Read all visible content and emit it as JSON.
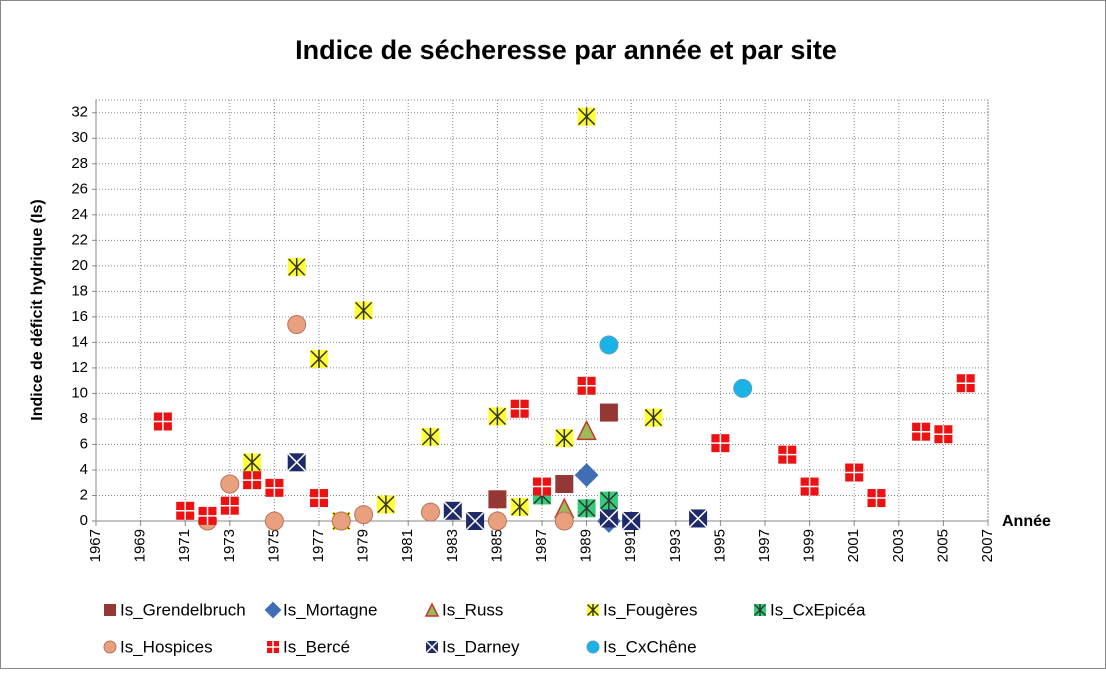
{
  "chart_data": {
    "type": "scatter",
    "title": "Indice de sécheresse par année et par site",
    "x_label": "Année",
    "y_label": "Indice de déficit hydrique (Is)",
    "xlim": [
      1967,
      2007
    ],
    "xticks": [
      1967,
      1969,
      1971,
      1973,
      1975,
      1977,
      1979,
      1981,
      1983,
      1985,
      1987,
      1989,
      1991,
      1993,
      1995,
      1997,
      1999,
      2001,
      2003,
      2005,
      2007
    ],
    "ylim": [
      0,
      33
    ],
    "yticks": [
      0,
      2,
      4,
      6,
      8,
      10,
      12,
      14,
      16,
      18,
      20,
      22,
      24,
      26,
      28,
      30,
      32
    ],
    "grid": true,
    "legend": "bottom",
    "series": [
      {
        "name": "Is_Grendelbruch",
        "color": "#953735",
        "marker": "square",
        "x": [
          1985,
          1988,
          1990
        ],
        "values": [
          1.7,
          2.9,
          8.5
        ]
      },
      {
        "name": "Is_Mortagne",
        "color": "#3f6eb5",
        "marker": "diamond",
        "x": [
          1989,
          1990
        ],
        "values": [
          3.6,
          0
        ]
      },
      {
        "name": "Is_Russ",
        "color": "#9bbb59",
        "marker": "triangle",
        "x": [
          1988,
          1989
        ],
        "values": [
          1.0,
          7.1
        ]
      },
      {
        "name": "Is_Fougères",
        "color": "#ffff33",
        "marker": "star",
        "x": [
          1974,
          1976,
          1977,
          1978,
          1979,
          1980,
          1982,
          1985,
          1986,
          1987,
          1988,
          1989,
          1992
        ],
        "values": [
          4.6,
          19.9,
          12.7,
          0,
          16.5,
          1.3,
          6.6,
          8.2,
          1.1,
          2.1,
          6.5,
          31.7,
          8.1
        ]
      },
      {
        "name": "Is_CxEpicéa",
        "color": "#33cc77",
        "marker": "star",
        "x": [
          1987,
          1989,
          1990
        ],
        "values": [
          2.0,
          1.0,
          1.6
        ]
      },
      {
        "name": "Is_Hospices",
        "color": "#e8a07f",
        "marker": "circle",
        "x": [
          1972,
          1973,
          1975,
          1976,
          1978,
          1979,
          1982,
          1985,
          1988
        ],
        "values": [
          0,
          2.9,
          0,
          15.4,
          0,
          0.5,
          0.7,
          0,
          0
        ]
      },
      {
        "name": "Is_Bercé",
        "color": "#ee1111",
        "marker": "plus",
        "x": [
          1970,
          1971,
          1972,
          1973,
          1974,
          1975,
          1977,
          1986,
          1987,
          1989,
          1995,
          1998,
          1999,
          2001,
          2002,
          2004,
          2005,
          2006
        ],
        "values": [
          7.8,
          0.8,
          0.4,
          1.2,
          3.2,
          2.6,
          1.8,
          8.8,
          2.7,
          10.6,
          6.1,
          5.2,
          2.7,
          3.8,
          1.8,
          7.0,
          6.8,
          10.8
        ]
      },
      {
        "name": "Is_Darney",
        "color": "#1f2a6b",
        "marker": "cross",
        "x": [
          1976,
          1983,
          1984,
          1990,
          1991,
          1994
        ],
        "values": [
          4.6,
          0.8,
          0,
          0.2,
          0,
          0.2
        ]
      },
      {
        "name": "Is_CxChêne",
        "color": "#1ab3e6",
        "marker": "circle",
        "x": [
          1990,
          1996
        ],
        "values": [
          13.8,
          10.4
        ]
      }
    ]
  }
}
